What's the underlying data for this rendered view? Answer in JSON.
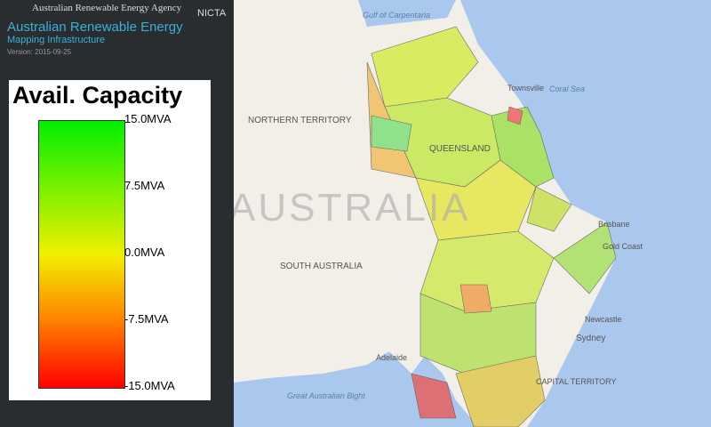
{
  "header": {
    "agency": "Australian Renewable Energy Agency",
    "partner": "NICTA",
    "title": "Australian Renewable Energy",
    "subtitle": "Mapping Infrastructure",
    "version": "Version: 2015-09-25"
  },
  "legend": {
    "title": "Avail. Capacity",
    "ticks": [
      "15.0MVA",
      "7.5MVA",
      "0.0MVA",
      "-7.5MVA",
      "-15.0MVA"
    ]
  },
  "map": {
    "labels": [
      "Gulf of Carpentaria",
      "Coral Sea",
      "Townsville",
      "NORTHERN TERRITORY",
      "QUEENSLAND",
      "AUSTRALIA",
      "SOUTH AUSTRALIA",
      "Brisbane",
      "Gold Coast",
      "Newcastle",
      "Sydney",
      "Adelaide",
      "Great Australian Bight",
      "CAPITAL TERRITORY"
    ]
  }
}
